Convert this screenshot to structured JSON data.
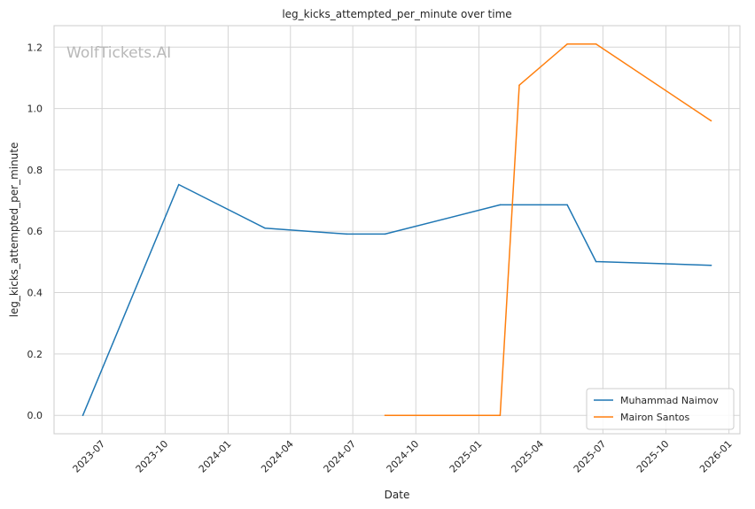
{
  "watermark": "WolfTickets.AI",
  "chart_data": {
    "type": "line",
    "title": "leg_kicks_attempted_per_minute over time",
    "xlabel": "Date",
    "ylabel": "leg_kicks_attempted_per_minute",
    "x_ticks": [
      "2023-07",
      "2023-10",
      "2024-01",
      "2024-04",
      "2024-07",
      "2024-10",
      "2025-01",
      "2025-04",
      "2025-07",
      "2025-10",
      "2026-01"
    ],
    "y_ticks": [
      "0.0",
      "0.2",
      "0.4",
      "0.6",
      "0.8",
      "1.0",
      "1.2"
    ],
    "xlim": [
      "2023-04-22",
      "2026-01-17"
    ],
    "ylim": [
      -0.06,
      1.27
    ],
    "grid": true,
    "legend_position": "lower-right",
    "colors": {
      "Muhammad Naimov": "#1f77b4",
      "Mairon Santos": "#ff7f0e"
    },
    "series": [
      {
        "name": "Muhammad Naimov",
        "x": [
          "2023-06-03",
          "2023-10-21",
          "2024-02-24",
          "2024-06-22",
          "2024-08-17",
          "2025-02-01",
          "2025-05-10",
          "2025-06-21",
          "2025-12-06"
        ],
        "y": [
          0.0,
          0.752,
          0.61,
          0.591,
          0.591,
          0.686,
          0.686,
          0.501,
          0.489
        ]
      },
      {
        "name": "Mairon Santos",
        "x": [
          "2024-08-17",
          "2025-02-01",
          "2025-03-01",
          "2025-05-10",
          "2025-06-21",
          "2025-12-06"
        ],
        "y": [
          0.0,
          0.0,
          1.076,
          1.21,
          1.21,
          0.96
        ]
      }
    ]
  }
}
